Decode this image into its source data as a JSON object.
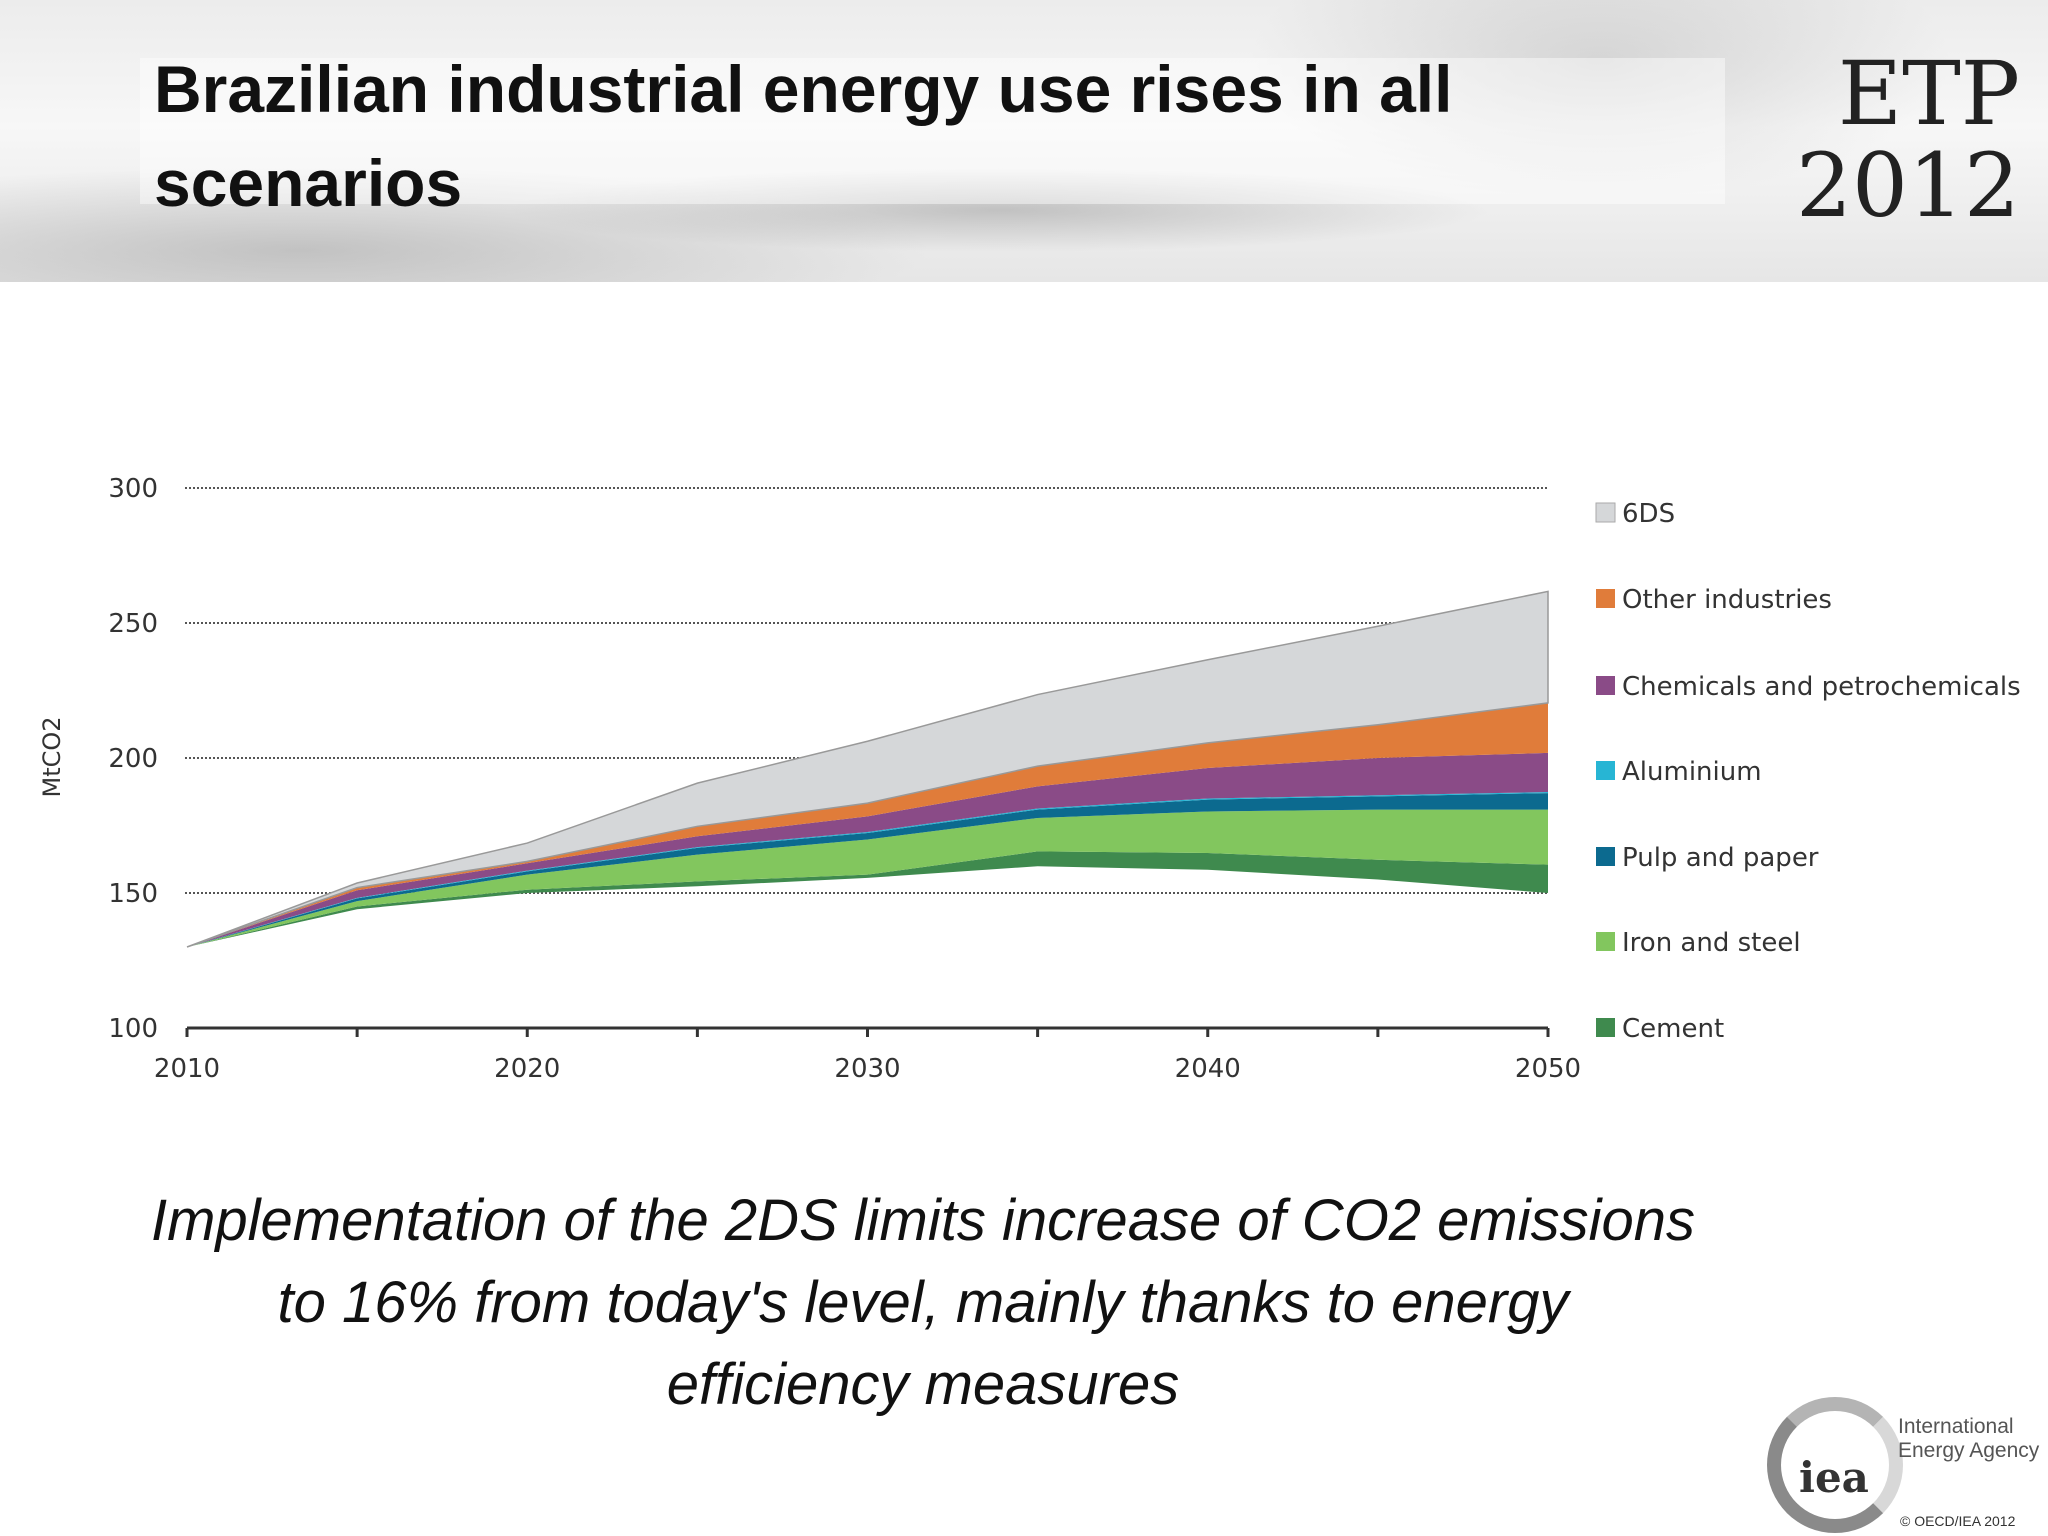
{
  "header": {
    "title": "Brazilian industrial energy use rises in all scenarios",
    "logo_line1": "ETP",
    "logo_line2": "2012"
  },
  "chart_data": {
    "type": "area",
    "title": "",
    "xlabel": "",
    "ylabel": "MtCO2",
    "xlim": [
      2010,
      2050
    ],
    "ylim": [
      100,
      300
    ],
    "x_ticks": [
      "2010",
      "2020",
      "2030",
      "2040",
      "2050"
    ],
    "y_ticks": [
      "100",
      "150",
      "200",
      "250",
      "300"
    ],
    "grid": "horizontal dotted",
    "legend_position": "right",
    "x": [
      2010,
      2015,
      2020,
      2025,
      2030,
      2035,
      2040,
      2045,
      2050
    ],
    "lower_bound": [
      130,
      144,
      150,
      152.5,
      155.6,
      159.9,
      158.6,
      155,
      150
    ],
    "series": [
      {
        "name": "Cement",
        "color": "#3f8a4e",
        "upper": [
          130,
          145,
          151.2,
          154.3,
          156.8,
          165.4,
          164.8,
          162.3,
          160.5
        ]
      },
      {
        "name": "Iron and steel",
        "color": "#82c65e",
        "upper": [
          130,
          147,
          156.8,
          164.2,
          169.8,
          177.8,
          180.2,
          180.9,
          180.9
        ]
      },
      {
        "name": "Pulp and paper",
        "color": "#0c6a8f",
        "upper": [
          130,
          148,
          158,
          166.7,
          172.2,
          180.9,
          184.6,
          185.8,
          187
        ]
      },
      {
        "name": "Aluminium",
        "color": "#27b5d4",
        "upper": [
          130,
          148.2,
          158.3,
          167,
          172.6,
          181.3,
          185,
          186.2,
          187.4
        ]
      },
      {
        "name": "Chemicals and petrochemicals",
        "color": "#8a4b87",
        "upper": [
          130,
          151,
          161,
          171,
          178.4,
          189.5,
          196.3,
          200,
          201.9
        ]
      },
      {
        "name": "Other industries",
        "color": "#e07c3a",
        "upper": [
          130,
          152,
          161.7,
          174.7,
          183.3,
          197,
          205.6,
          212.3,
          220.4
        ]
      },
      {
        "name": "6DS",
        "color": "#d5d7d9",
        "upper": [
          130,
          153.7,
          168.5,
          190.7,
          206.2,
          223.5,
          236.4,
          248.8,
          261.7
        ]
      }
    ],
    "legend_order": [
      "6DS",
      "Other industries",
      "Chemicals and petrochemicals",
      "Aluminium",
      "Pulp and paper",
      "Iron and steel",
      "Cement"
    ]
  },
  "caption": {
    "line1": "Implementation of the 2DS limits increase of CO2 emissions",
    "line2": "to 16% from today's level, mainly thanks to energy",
    "line3": "efficiency measures"
  },
  "footer": {
    "logo_text": "iea",
    "org_line1": "International",
    "org_line2": "Energy Agency",
    "copyright": "© OECD/IEA 2012"
  }
}
